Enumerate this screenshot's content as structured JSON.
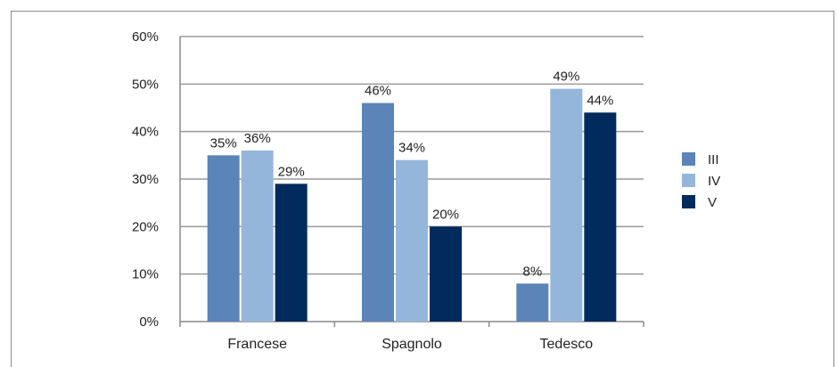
{
  "chart_data": {
    "type": "bar",
    "categories": [
      "Francese",
      "Spagnolo",
      "Tedesco"
    ],
    "series": [
      {
        "name": "III",
        "values": [
          35,
          46,
          8
        ],
        "labels": [
          "35%",
          "46%",
          "8%"
        ],
        "color": "#5b84b8"
      },
      {
        "name": "IV",
        "values": [
          36,
          34,
          49
        ],
        "labels": [
          "36%",
          "34%",
          "49%"
        ],
        "color": "#95b6db"
      },
      {
        "name": "V",
        "values": [
          29,
          20,
          44
        ],
        "labels": [
          "29%",
          "20%",
          "44%"
        ],
        "color": "#002b5c"
      }
    ],
    "ylim": [
      0,
      60
    ],
    "yticks": [
      "0%",
      "10%",
      "20%",
      "30%",
      "40%",
      "50%",
      "60%"
    ],
    "grid": true,
    "legend_position": "right",
    "title": "",
    "xlabel": "",
    "ylabel": ""
  },
  "colors": {
    "grid": "#9a9a9a",
    "axis": "#8a8a8a",
    "frame": "#8a8a8a"
  }
}
